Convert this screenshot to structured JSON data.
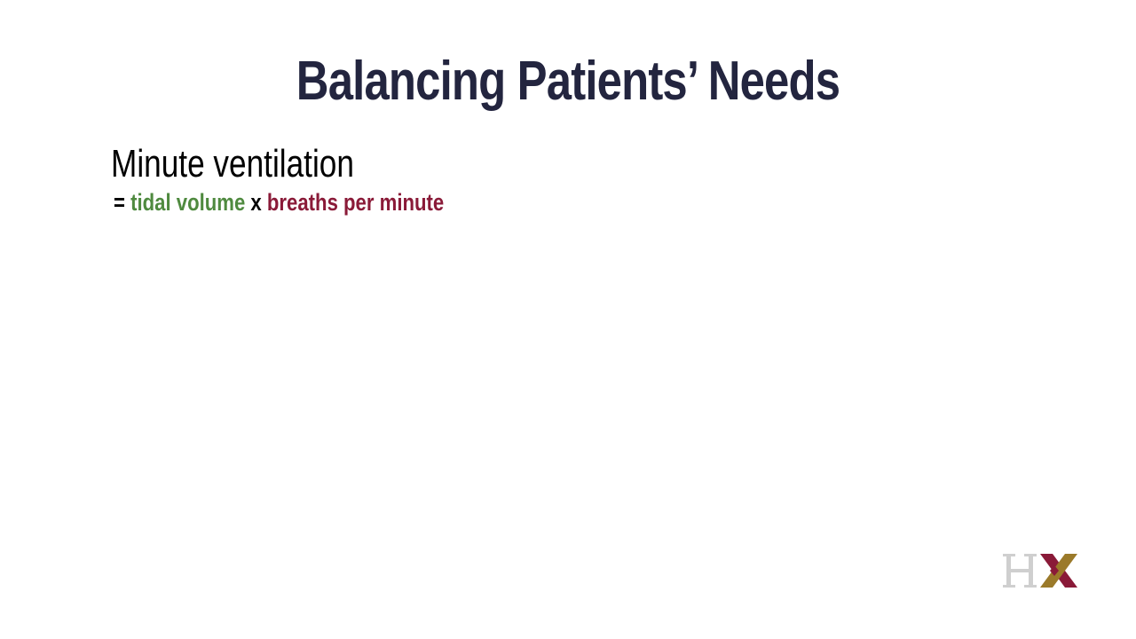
{
  "slide": {
    "title": "Balancing Patients’ Needs",
    "heading": "Minute ventilation",
    "formula": {
      "equals": "=",
      "term1": "tidal volume",
      "operator": "x",
      "term2": "breaths per minute"
    },
    "logo_text": "HX"
  },
  "colors": {
    "title": "#23253f",
    "heading": "#000000",
    "term1": "#4f8a3f",
    "term2": "#8a1a38",
    "operator": "#000000",
    "logo_h": "#cfcfcf",
    "logo_x_gold": "#9b7a2a",
    "logo_x_red": "#8a1a38"
  }
}
